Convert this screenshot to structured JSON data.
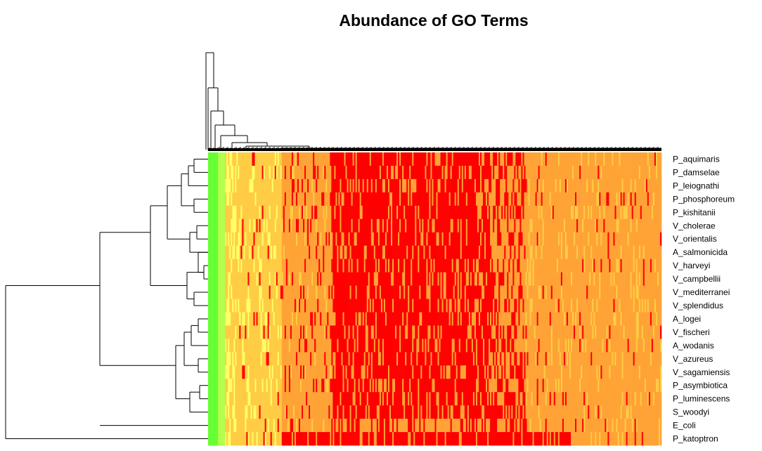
{
  "chart_data": {
    "type": "heatmap",
    "title": "Abundance of GO Terms",
    "rows": [
      "P_aquimaris",
      "P_damselae",
      "P_leiognathi",
      "P_phosphoreum",
      "P_kishitanii",
      "V_cholerae",
      "V_orientalis",
      "A_salmonicida",
      "V_harveyi",
      "V_campbellii",
      "V_mediterranei",
      "V_splendidus",
      "A_logei",
      "V_fischeri",
      "A_wodanis",
      "V_azureus",
      "V_sagamiensis",
      "P_asymbiotica",
      "P_luminescens",
      "S_woodyi",
      "E_coli",
      "P_katoptron"
    ],
    "color_scale": [
      "#66ff33",
      "#b3ff4d",
      "#ffff66",
      "#ffcc44",
      "#ffa336",
      "#ff0000"
    ],
    "column_profile": {
      "description_free": true,
      "bands": [
        {
          "from": 0.0,
          "to": 0.035,
          "level": 0
        },
        {
          "from": 0.035,
          "to": 0.06,
          "level": 2
        },
        {
          "from": 0.06,
          "to": 0.16,
          "level": 3
        },
        {
          "from": 0.16,
          "to": 0.27,
          "level": 4
        },
        {
          "from": 0.27,
          "to": 0.62,
          "level": 5
        },
        {
          "from": 0.62,
          "to": 0.7,
          "level": 4
        },
        {
          "from": 0.7,
          "to": 1.0,
          "level": 4
        }
      ]
    },
    "row_dendrogram_order": [
      "P_aquimaris",
      "P_damselae",
      "P_leiognathi",
      "P_phosphoreum",
      "P_kishitanii",
      "V_cholerae",
      "V_orientalis",
      "A_salmonicida",
      "V_harveyi",
      "V_campbellii",
      "V_mediterranei",
      "V_splendidus",
      "A_logei",
      "V_fischeri",
      "A_wodanis",
      "V_azureus",
      "V_sagamiensis",
      "P_asymbiotica",
      "P_luminescens",
      "S_woodyi",
      "E_coli",
      "P_katoptron"
    ],
    "legend": "none",
    "grid": false
  }
}
